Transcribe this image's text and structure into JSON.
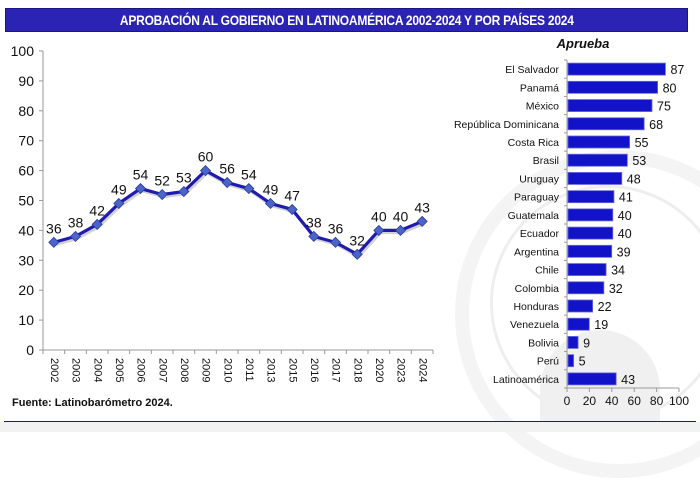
{
  "header": {
    "title": "APROBACIÓN AL GOBIERNO EN LATINOAMÉRICA 2002-2024 Y POR PAÍSES 2024"
  },
  "footer": {
    "source": "Fuente: Latinobarómetro 2024."
  },
  "colors": {
    "title_bg": "#2a23b4",
    "line": "#1f1bb0",
    "marker": "#4a64c8",
    "bar": "#1212c8"
  },
  "chart_data": [
    {
      "type": "line",
      "title": "",
      "xlabel": "",
      "ylabel": "",
      "x": [
        "2002",
        "2003",
        "2004",
        "2005",
        "2006",
        "2007",
        "2008",
        "2009",
        "2010",
        "2011",
        "2013",
        "2015",
        "2016",
        "2017",
        "2018",
        "2020",
        "2023",
        "2024"
      ],
      "values": [
        36,
        38,
        42,
        49,
        54,
        52,
        53,
        60,
        56,
        54,
        49,
        47,
        38,
        36,
        32,
        40,
        40,
        43
      ],
      "ylim": [
        0,
        100
      ],
      "yticks": [
        0,
        10,
        20,
        30,
        40,
        50,
        60,
        70,
        80,
        90,
        100
      ],
      "grid": false,
      "data_labels": true
    },
    {
      "type": "bar",
      "orientation": "horizontal",
      "title": "Aprueba",
      "categories": [
        "El Salvador",
        "Panamá",
        "México",
        "República Dominicana",
        "Costa Rica",
        "Brasil",
        "Uruguay",
        "Paraguay",
        "Guatemala",
        "Ecuador",
        "Argentina",
        "Chile",
        "Colombia",
        "Honduras",
        "Venezuela",
        "Bolivia",
        "Perú",
        "Latinoamérica"
      ],
      "values": [
        87,
        80,
        75,
        68,
        55,
        53,
        48,
        41,
        40,
        40,
        39,
        34,
        32,
        22,
        19,
        9,
        5,
        43
      ],
      "xlim": [
        0,
        100
      ],
      "xticks": [
        0,
        20,
        40,
        60,
        80,
        100
      ],
      "grid": false,
      "data_labels": true
    }
  ]
}
